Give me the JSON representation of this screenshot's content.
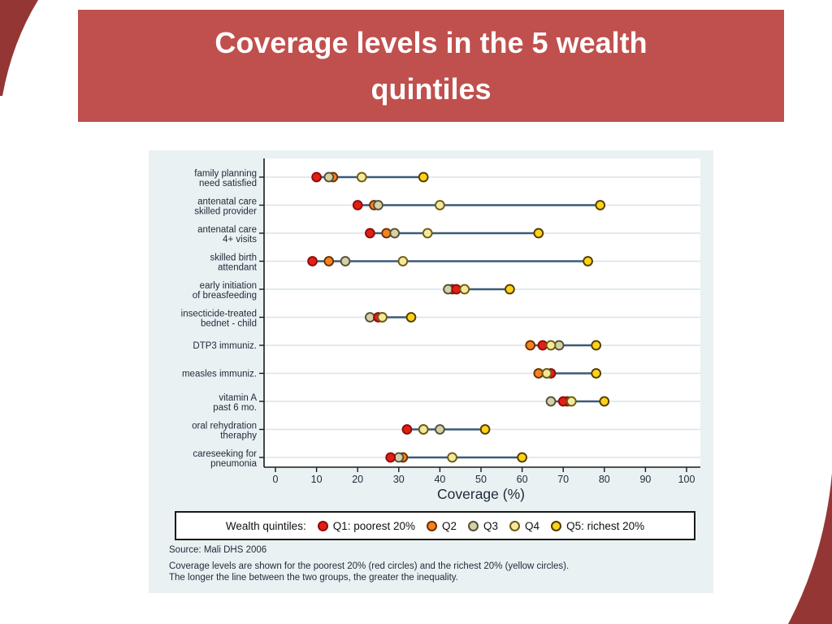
{
  "title": {
    "line1": "Coverage levels in the 5 wealth",
    "line2": "quintiles"
  },
  "legend": {
    "prefix": "Wealth quintiles:"
  },
  "source_text": "Source: Mali DHS 2006",
  "footnote_line1": "Coverage levels are shown for the poorest 20% (red circles) and the richest 20% (yellow circles).",
  "footnote_line2": "The longer the line between the two groups, the greater the inequality.",
  "colors": {
    "banner": "#c0504d",
    "swoosh": "#943634",
    "panel_bg": "#eaf1f3",
    "plot_bg": "#ffffff",
    "grid": "#d9e3e8",
    "axis": "#1a1a1a",
    "range_line": "#3b5a78",
    "text": "#1c2a38"
  },
  "chart_data": {
    "type": "scatter",
    "subtype": "dot-range-plot",
    "xlabel": "Coverage (%)",
    "xlim": [
      0,
      100
    ],
    "x_ticks": [
      0,
      10,
      20,
      30,
      40,
      50,
      60,
      70,
      80,
      90,
      100
    ],
    "grid": true,
    "legend_position": "bottom-box",
    "categories": [
      [
        "family planning",
        "need satisfied"
      ],
      [
        "antenatal care",
        "skilled provider"
      ],
      [
        "antenatal care",
        "4+ visits"
      ],
      [
        "skilled birth",
        "attendant"
      ],
      [
        "early initiation",
        "of breasfeeding"
      ],
      [
        "insecticide-treated",
        "bednet - child"
      ],
      [
        "DTP3 immuniz."
      ],
      [
        "measles immuniz."
      ],
      [
        "vitamin A",
        "past 6 mo."
      ],
      [
        "oral rehydration",
        "theraphy"
      ],
      [
        "careseeking for",
        "pneumonia"
      ]
    ],
    "series": [
      {
        "name": "Q1: poorest 20%",
        "fill": "#e31f13",
        "stroke": "#8c0d0d",
        "values": [
          10,
          20,
          23,
          9,
          44,
          25,
          65,
          67,
          70,
          32,
          28
        ]
      },
      {
        "name": "Q2",
        "fill": "#f58220",
        "stroke": "#6b3000",
        "values": [
          14,
          24,
          27,
          13,
          43,
          26,
          62,
          64,
          71,
          36,
          31
        ]
      },
      {
        "name": "Q3",
        "fill": "#d6d0a4",
        "stroke": "#52503c",
        "values": [
          13,
          25,
          29,
          17,
          42,
          23,
          69,
          66,
          67,
          40,
          30
        ]
      },
      {
        "name": "Q4",
        "fill": "#f5e79e",
        "stroke": "#6e5c10",
        "values": [
          21,
          40,
          37,
          31,
          46,
          26,
          67,
          66,
          72,
          36,
          43
        ]
      },
      {
        "name": "Q5: richest 20%",
        "fill": "#ffd217",
        "stroke": "#503c00",
        "values": [
          36,
          79,
          64,
          76,
          57,
          33,
          78,
          78,
          80,
          51,
          60
        ]
      }
    ]
  }
}
